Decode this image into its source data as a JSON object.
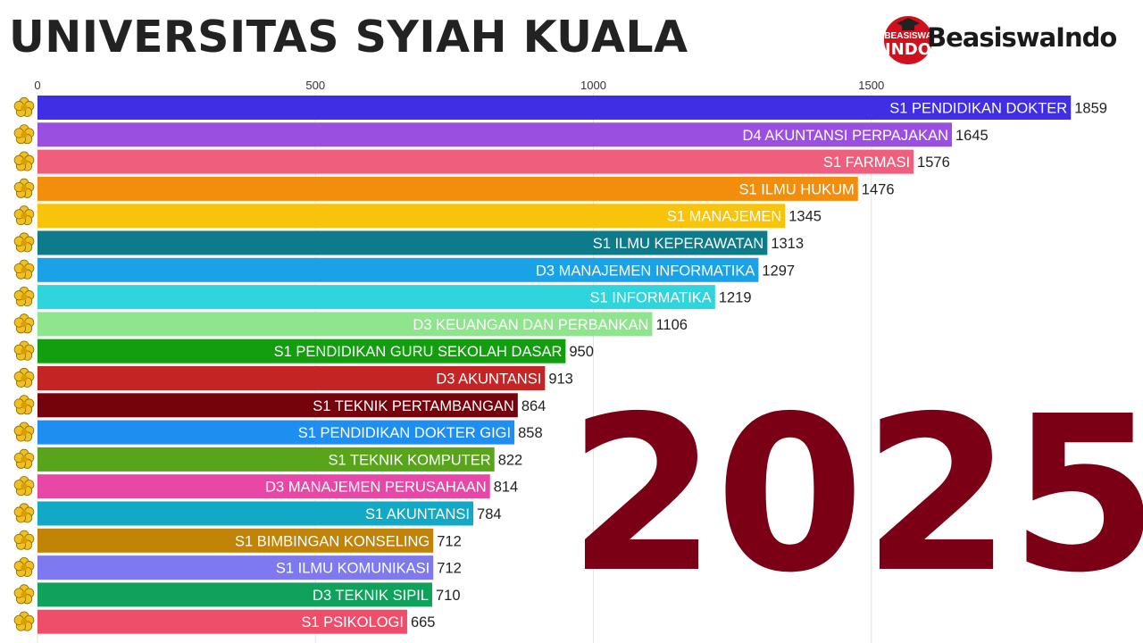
{
  "title": "UNIVERSITAS SYIAH KUALA",
  "logo": {
    "badge_top": "BEASISWA",
    "badge_bottom": "INDO",
    "text": "BeasiswaIndo",
    "badge_color": "#d0101c",
    "icon": "graduation-cap-icon"
  },
  "year_label": "2025",
  "row_icon": "university-emblem-icon",
  "chart_data": {
    "type": "bar",
    "orientation": "horizontal",
    "title": "UNIVERSITAS SYIAH KUALA",
    "xlim": [
      0,
      1859
    ],
    "x_ticks": [
      "0",
      "500",
      "1000",
      "1500"
    ],
    "tick_values": [
      0,
      500,
      1000,
      1500
    ],
    "grid": true,
    "categories": [
      "S1 PENDIDIKAN DOKTER",
      "D4 AKUNTANSI PERPAJAKAN",
      "S1 FARMASI",
      "S1 ILMU HUKUM",
      "S1 MANAJEMEN",
      "S1 ILMU KEPERAWATAN",
      "D3 MANAJEMEN INFORMATIKA",
      "S1 INFORMATIKA",
      "D3 KEUANGAN DAN PERBANKAN",
      "S1 PENDIDIKAN GURU SEKOLAH DASAR",
      "D3 AKUNTANSI",
      "S1 TEKNIK PERTAMBANGAN",
      "S1 PENDIDIKAN DOKTER GIGI",
      "S1 TEKNIK KOMPUTER",
      "D3 MANAJEMEN PERUSAHAAN",
      "S1 AKUNTANSI",
      "S1 BIMBINGAN KONSELING",
      "S1 ILMU KOMUNIKASI",
      "D3 TEKNIK SIPIL",
      "S1 PSIKOLOGI"
    ],
    "values": [
      1859,
      1645,
      1576,
      1476,
      1345,
      1313,
      1297,
      1219,
      1106,
      950,
      913,
      864,
      858,
      822,
      814,
      784,
      712,
      712,
      710,
      665
    ],
    "colors": [
      "#3f2ee3",
      "#9b4fe0",
      "#ef5f7d",
      "#f38e0d",
      "#f8c40b",
      "#0e7b8a",
      "#19a3e6",
      "#2fd5dd",
      "#8fe48e",
      "#129e0f",
      "#c42424",
      "#74030b",
      "#1e8ff0",
      "#58a41a",
      "#e847a8",
      "#11a9c6",
      "#c28407",
      "#7f79ef",
      "#10a25d",
      "#ef4e6b"
    ]
  }
}
